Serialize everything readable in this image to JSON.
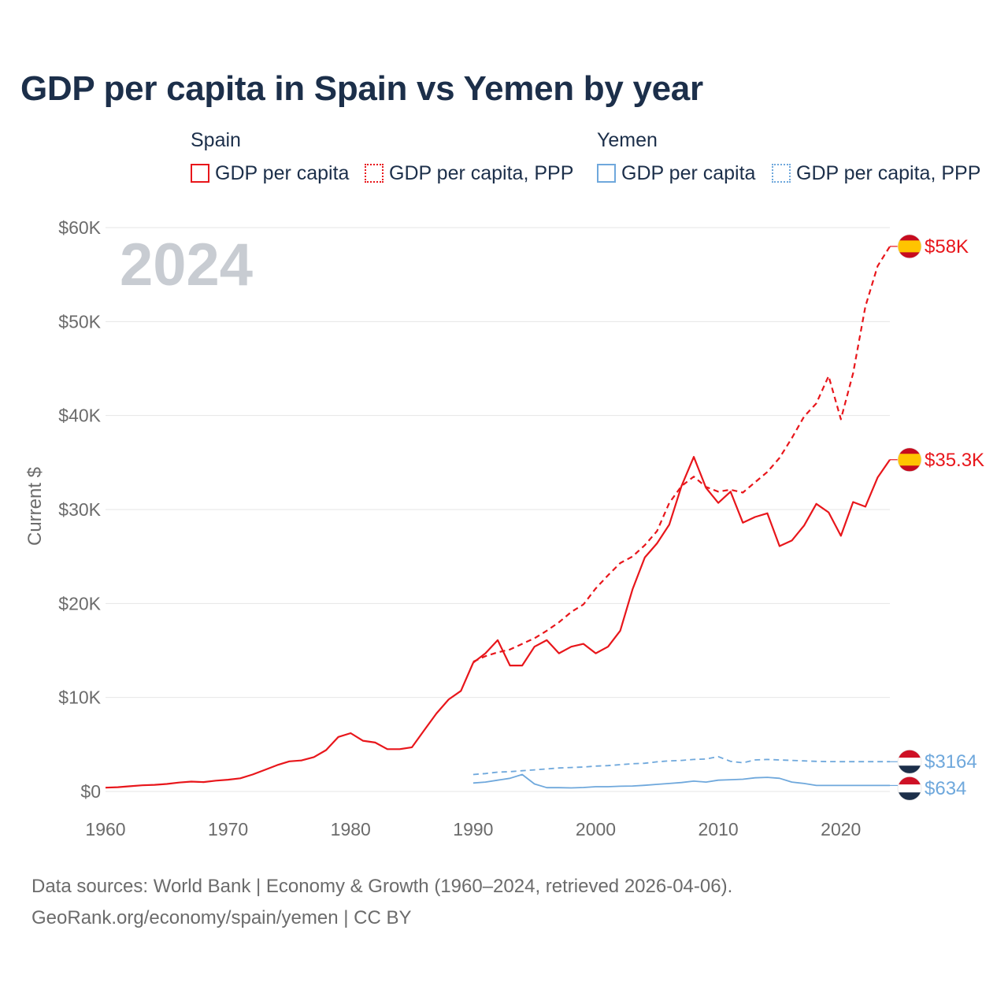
{
  "title": "GDP per capita in Spain vs Yemen by year",
  "legend": {
    "spain": {
      "title": "Spain",
      "items": [
        "GDP per capita",
        "GDP per capita, PPP"
      ]
    },
    "yemen": {
      "title": "Yemen",
      "items": [
        "GDP per capita",
        "GDP per capita, PPP"
      ]
    }
  },
  "year_label": "2024",
  "source_lines": [
    "Data sources: World Bank | Economy & Growth (1960–2024, retrieved 2026-04-06).",
    "GeoRank.org/economy/spain/yemen | CC BY"
  ],
  "colors": {
    "spain": "#e8161b",
    "yemen": "#6fa8dc",
    "axis_text": "#6b6b6b",
    "grid": "#e6e6e6",
    "year_watermark": "#c8ccd2"
  },
  "chart_data": {
    "type": "line",
    "title": "GDP per capita in Spain vs Yemen by year",
    "ylabel": "Current $",
    "xlabel": "",
    "xlim": [
      1960,
      2024
    ],
    "ylim": [
      0,
      60000
    ],
    "x_ticks": [
      1960,
      1970,
      1980,
      1990,
      2000,
      2010,
      2020
    ],
    "x_tick_labels": [
      "1960",
      "1970",
      "1980",
      "1990",
      "2000",
      "2010",
      "2020"
    ],
    "y_ticks": [
      0,
      10000,
      20000,
      30000,
      40000,
      50000,
      60000
    ],
    "y_tick_labels": [
      "$0",
      "$10K",
      "$20K",
      "$30K",
      "$40K",
      "$50K",
      "$60K"
    ],
    "grid": true,
    "series": [
      {
        "name": "Spain GDP per capita",
        "country": "spain",
        "style": "solid",
        "end_label": "$35.3K",
        "x": [
          1960,
          1961,
          1962,
          1963,
          1964,
          1965,
          1966,
          1967,
          1968,
          1969,
          1970,
          1971,
          1972,
          1973,
          1974,
          1975,
          1976,
          1977,
          1978,
          1979,
          1980,
          1981,
          1982,
          1983,
          1984,
          1985,
          1986,
          1987,
          1988,
          1989,
          1990,
          1991,
          1992,
          1993,
          1994,
          1995,
          1996,
          1997,
          1998,
          1999,
          2000,
          2001,
          2002,
          2003,
          2004,
          2005,
          2006,
          2007,
          2008,
          2009,
          2010,
          2011,
          2012,
          2013,
          2014,
          2015,
          2016,
          2017,
          2018,
          2019,
          2020,
          2021,
          2022,
          2023,
          2024
        ],
        "values": [
          400,
          450,
          550,
          650,
          700,
          800,
          950,
          1050,
          1000,
          1150,
          1250,
          1400,
          1800,
          2300,
          2800,
          3200,
          3300,
          3650,
          4400,
          5800,
          6200,
          5400,
          5200,
          4500,
          4500,
          4700,
          6500,
          8300,
          9800,
          10700,
          13700,
          14700,
          16100,
          13400,
          13400,
          15400,
          16100,
          14700,
          15400,
          15700,
          14700,
          15400,
          17100,
          21500,
          24900,
          26400,
          28400,
          32500,
          35600,
          32300,
          30700,
          31900,
          28600,
          29200,
          29600,
          26100,
          26700,
          28300,
          30600,
          29700,
          27200,
          30800,
          30300,
          33400,
          35300
        ]
      },
      {
        "name": "Spain GDP per capita, PPP",
        "country": "spain",
        "style": "dashed",
        "end_label": "$58K",
        "x": [
          1990,
          1991,
          1992,
          1993,
          1994,
          1995,
          1996,
          1997,
          1998,
          1999,
          2000,
          2001,
          2002,
          2003,
          2004,
          2005,
          2006,
          2007,
          2008,
          2009,
          2010,
          2011,
          2012,
          2013,
          2014,
          2015,
          2016,
          2017,
          2018,
          2019,
          2020,
          2021,
          2022,
          2023,
          2024
        ],
        "values": [
          13800,
          14400,
          14800,
          15100,
          15700,
          16300,
          17100,
          18000,
          19100,
          19900,
          21600,
          23000,
          24300,
          25000,
          26200,
          27700,
          30700,
          32500,
          33500,
          32400,
          31900,
          32100,
          31800,
          32900,
          34000,
          35500,
          37600,
          39900,
          41300,
          44200,
          39600,
          44500,
          51600,
          55900,
          58000
        ]
      },
      {
        "name": "Yemen GDP per capita",
        "country": "yemen",
        "style": "solid",
        "end_label": "$634",
        "x": [
          1990,
          1991,
          1992,
          1993,
          1994,
          1995,
          1996,
          1997,
          1998,
          1999,
          2000,
          2001,
          2002,
          2003,
          2004,
          2005,
          2006,
          2007,
          2008,
          2009,
          2010,
          2011,
          2012,
          2013,
          2014,
          2015,
          2016,
          2017,
          2018,
          2019,
          2020,
          2021,
          2022,
          2023,
          2024
        ],
        "values": [
          900,
          1000,
          1200,
          1400,
          1800,
          800,
          400,
          400,
          380,
          420,
          500,
          500,
          550,
          580,
          650,
          750,
          850,
          950,
          1100,
          1000,
          1200,
          1250,
          1300,
          1450,
          1500,
          1400,
          1000,
          850,
          634,
          634,
          634,
          634,
          634,
          634,
          634
        ]
      },
      {
        "name": "Yemen GDP per capita, PPP",
        "country": "yemen",
        "style": "dashed",
        "end_label": "$3164",
        "x": [
          1990,
          1991,
          1992,
          1993,
          1994,
          1995,
          1996,
          1997,
          1998,
          1999,
          2000,
          2001,
          2002,
          2003,
          2004,
          2005,
          2006,
          2007,
          2008,
          2009,
          2010,
          2011,
          2012,
          2013,
          2014,
          2015,
          2016,
          2017,
          2018,
          2019,
          2020,
          2021,
          2022,
          2023,
          2024
        ],
        "values": [
          1800,
          1900,
          2050,
          2100,
          2200,
          2300,
          2400,
          2500,
          2550,
          2600,
          2700,
          2750,
          2850,
          2950,
          3000,
          3150,
          3250,
          3300,
          3400,
          3450,
          3700,
          3200,
          3050,
          3350,
          3400,
          3350,
          3300,
          3250,
          3200,
          3180,
          3170,
          3165,
          3164,
          3164,
          3164
        ]
      }
    ]
  }
}
